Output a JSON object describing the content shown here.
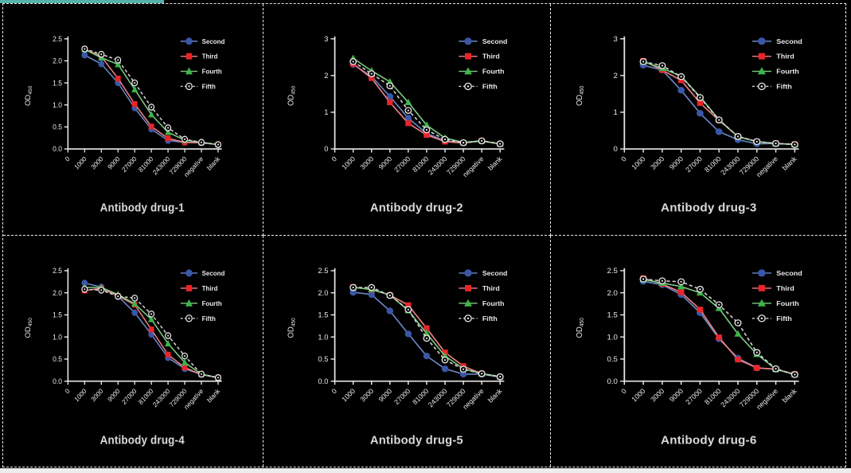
{
  "figure": {
    "background": "#000000",
    "grid_border_color": "#ececec",
    "top_accent_bar_color": "#57b1ab",
    "bottom_strip_color": "#ededed",
    "axis_color": "#e9e9e9",
    "text_color": "#e9e9e9",
    "title_color": "#dadada"
  },
  "y_axis": {
    "label": "OD",
    "label_subscript": "450"
  },
  "legend": {
    "position": "top-right",
    "items": [
      {
        "label": "Second",
        "marker": "circle",
        "marker_color": "#3a57a7",
        "line_color": "#6c88c6",
        "line_style": "solid"
      },
      {
        "label": "Third",
        "marker": "square",
        "marker_color": "#e8252a",
        "line_color": "#f08082",
        "line_style": "solid"
      },
      {
        "label": "Fourth",
        "marker": "triangle",
        "marker_color": "#3db54a",
        "line_color": "#7ccb82",
        "line_style": "solid"
      },
      {
        "label": "Fifth",
        "marker": "open-circle",
        "marker_color": "#e9e9e9",
        "line_color": "#d2d2d2",
        "line_style": "dashed"
      }
    ]
  },
  "chart_data": [
    {
      "type": "line",
      "title": "Antibody drug-1",
      "ylabel": "OD450",
      "xlabel": "",
      "x_tick_labels": [
        "0",
        "1000",
        "3000",
        "9000",
        "27000",
        "81000",
        "243000",
        "729000",
        "negative",
        "blank"
      ],
      "ylim": [
        0,
        2.5
      ],
      "yticks": [
        0,
        0.5,
        1.0,
        1.5,
        2.0,
        2.5
      ],
      "ytick_labels": [
        "0.0",
        "0.5",
        "1.0",
        "1.5",
        "2.0",
        "2.5"
      ],
      "series": [
        {
          "name": "Second",
          "values": [
            2.13,
            1.93,
            1.5,
            0.93,
            0.45,
            0.19,
            0.15,
            0.14,
            0.1
          ]
        },
        {
          "name": "Third",
          "values": [
            2.27,
            2.1,
            1.6,
            1.02,
            0.51,
            0.24,
            0.15,
            0.14,
            0.1
          ]
        },
        {
          "name": "Fourth",
          "values": [
            2.26,
            2.07,
            1.92,
            1.35,
            0.78,
            0.38,
            0.2,
            0.15,
            0.1
          ]
        },
        {
          "name": "Fifth",
          "values": [
            2.27,
            2.15,
            2.02,
            1.5,
            0.95,
            0.48,
            0.22,
            0.15,
            0.1
          ]
        }
      ]
    },
    {
      "type": "line",
      "title": "Antibody drug-2",
      "ylabel": "OD450",
      "xlabel": "",
      "x_tick_labels": [
        "0",
        "1000",
        "3000",
        "9000",
        "27000",
        "81000",
        "243000",
        "729000",
        "negative",
        "blank"
      ],
      "ylim": [
        0,
        3
      ],
      "yticks": [
        0,
        1,
        2,
        3
      ],
      "ytick_labels": [
        "0",
        "1",
        "2",
        "3"
      ],
      "series": [
        {
          "name": "Second",
          "values": [
            2.3,
            1.98,
            1.43,
            0.84,
            0.42,
            0.22,
            0.17,
            0.22,
            0.14
          ]
        },
        {
          "name": "Third",
          "values": [
            2.32,
            1.93,
            1.27,
            0.7,
            0.38,
            0.2,
            0.16,
            0.22,
            0.13
          ]
        },
        {
          "name": "Fourth",
          "values": [
            2.47,
            2.13,
            1.83,
            1.27,
            0.65,
            0.3,
            0.18,
            0.22,
            0.14
          ]
        },
        {
          "name": "Fifth",
          "values": [
            2.38,
            2.05,
            1.72,
            1.05,
            0.52,
            0.26,
            0.17,
            0.22,
            0.14
          ]
        }
      ]
    },
    {
      "type": "line",
      "title": "Antibody drug-3",
      "ylabel": "OD450",
      "xlabel": "",
      "x_tick_labels": [
        "0",
        "1000",
        "3000",
        "9000",
        "27000",
        "81000",
        "243000",
        "729000",
        "negative",
        "blank"
      ],
      "ylim": [
        0,
        3
      ],
      "yticks": [
        0,
        1,
        2,
        3
      ],
      "ytick_labels": [
        "0",
        "1",
        "2",
        "3"
      ],
      "series": [
        {
          "name": "Second",
          "values": [
            2.28,
            2.15,
            1.6,
            0.97,
            0.47,
            0.25,
            0.14,
            0.15,
            0.12
          ]
        },
        {
          "name": "Third",
          "values": [
            2.4,
            2.15,
            1.87,
            1.25,
            0.78,
            0.34,
            0.2,
            0.15,
            0.13
          ]
        },
        {
          "name": "Fourth",
          "values": [
            2.38,
            2.2,
            1.98,
            1.42,
            0.8,
            0.33,
            0.2,
            0.15,
            0.12
          ]
        },
        {
          "name": "Fifth",
          "values": [
            2.38,
            2.27,
            1.97,
            1.4,
            0.79,
            0.34,
            0.2,
            0.15,
            0.12
          ]
        }
      ]
    },
    {
      "type": "line",
      "title": "Antibody drug-4",
      "ylabel": "OD450",
      "xlabel": "",
      "x_tick_labels": [
        "0",
        "1000",
        "3000",
        "9000",
        "27000",
        "81000",
        "243000",
        "729000",
        "negative",
        "blank"
      ],
      "ylim": [
        0,
        2.5
      ],
      "yticks": [
        0,
        0.5,
        1.0,
        1.5,
        2.0,
        2.5
      ],
      "ytick_labels": [
        "0.0",
        "0.5",
        "1.0",
        "1.5",
        "2.0",
        "2.5"
      ],
      "series": [
        {
          "name": "Second",
          "values": [
            2.22,
            2.13,
            1.92,
            1.55,
            1.06,
            0.53,
            0.28,
            0.15,
            0.08
          ]
        },
        {
          "name": "Third",
          "values": [
            2.05,
            2.1,
            1.93,
            1.73,
            1.17,
            0.6,
            0.31,
            0.15,
            0.08
          ]
        },
        {
          "name": "Fourth",
          "values": [
            2.12,
            2.12,
            1.96,
            1.75,
            1.4,
            0.85,
            0.42,
            0.16,
            0.08
          ]
        },
        {
          "name": "Fifth",
          "values": [
            2.08,
            2.06,
            1.92,
            1.88,
            1.52,
            1.03,
            0.57,
            0.16,
            0.08
          ]
        }
      ]
    },
    {
      "type": "line",
      "title": "Antibody drug-5",
      "ylabel": "OD450",
      "xlabel": "",
      "x_tick_labels": [
        "0",
        "1000",
        "3000",
        "9000",
        "27000",
        "81000",
        "243000",
        "729000",
        "negative",
        "blank"
      ],
      "ylim": [
        0,
        2.5
      ],
      "yticks": [
        0,
        0.5,
        1.0,
        1.5,
        2.0,
        2.5
      ],
      "ytick_labels": [
        "0.0",
        "0.5",
        "1.0",
        "1.5",
        "2.0",
        "2.5"
      ],
      "series": [
        {
          "name": "Second",
          "values": [
            2.01,
            1.96,
            1.59,
            1.07,
            0.57,
            0.28,
            0.16,
            0.16,
            0.09
          ]
        },
        {
          "name": "Third",
          "values": [
            2.13,
            2.07,
            1.95,
            1.72,
            1.2,
            0.65,
            0.34,
            0.17,
            0.1
          ]
        },
        {
          "name": "Fourth",
          "values": [
            2.12,
            2.08,
            1.95,
            1.6,
            1.08,
            0.57,
            0.28,
            0.17,
            0.1
          ]
        },
        {
          "name": "Fifth",
          "values": [
            2.12,
            2.12,
            1.94,
            1.62,
            0.97,
            0.48,
            0.27,
            0.17,
            0.1
          ]
        }
      ]
    },
    {
      "type": "line",
      "title": "Antibody drug-6",
      "ylabel": "OD450",
      "xlabel": "",
      "x_tick_labels": [
        "0",
        "1000",
        "3000",
        "9000",
        "27000",
        "81000",
        "243000",
        "729000",
        "negative",
        "blank"
      ],
      "ylim": [
        0,
        2.5
      ],
      "yticks": [
        0,
        0.5,
        1.0,
        1.5,
        2.0,
        2.5
      ],
      "ytick_labels": [
        "0.0",
        "0.5",
        "1.0",
        "1.5",
        "2.0",
        "2.5"
      ],
      "series": [
        {
          "name": "Second",
          "values": [
            2.26,
            2.18,
            1.96,
            1.55,
            0.96,
            0.52,
            0.3,
            0.27,
            0.15
          ]
        },
        {
          "name": "Third",
          "values": [
            2.33,
            2.2,
            2.01,
            1.62,
            0.99,
            0.49,
            0.3,
            0.27,
            0.16
          ]
        },
        {
          "name": "Fourth",
          "values": [
            2.3,
            2.22,
            2.14,
            2.0,
            1.65,
            1.07,
            0.61,
            0.27,
            0.15
          ]
        },
        {
          "name": "Fifth",
          "values": [
            2.31,
            2.27,
            2.25,
            2.08,
            1.73,
            1.32,
            0.65,
            0.28,
            0.15
          ]
        }
      ]
    }
  ]
}
